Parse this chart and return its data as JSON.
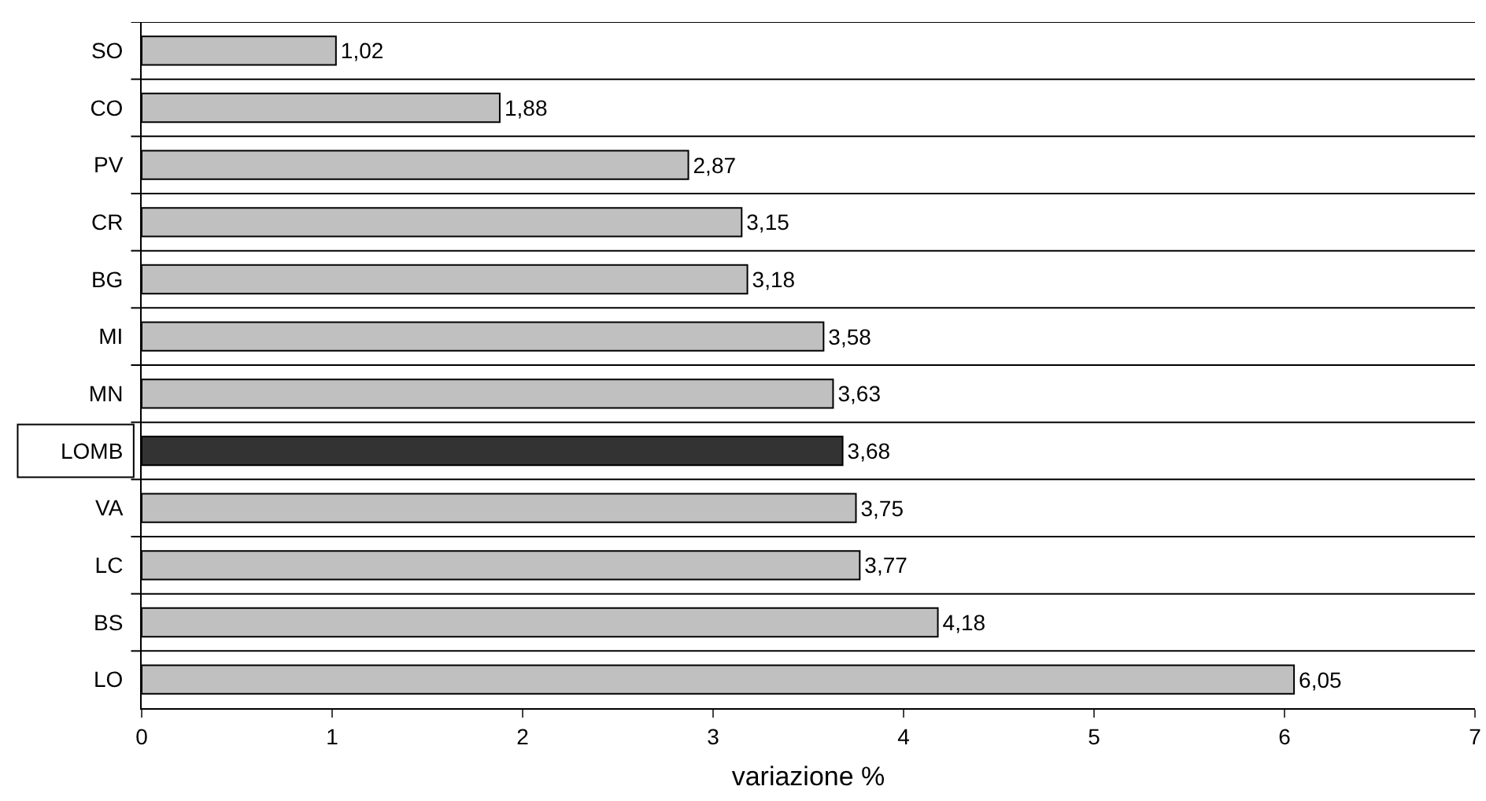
{
  "chart_data": {
    "type": "bar",
    "orientation": "horizontal",
    "xlabel": "variazione %",
    "categories": [
      "SO",
      "CO",
      "PV",
      "CR",
      "BG",
      "MI",
      "MN",
      "LOMB",
      "VA",
      "LC",
      "BS",
      "LO"
    ],
    "values": [
      1.02,
      1.88,
      2.87,
      3.15,
      3.18,
      3.58,
      3.63,
      3.68,
      3.75,
      3.77,
      4.18,
      6.05
    ],
    "colors": [
      "#c0c0c0",
      "#c0c0c0",
      "#c0c0c0",
      "#c0c0c0",
      "#c0c0c0",
      "#c0c0c0",
      "#c0c0c0",
      "#333333",
      "#c0c0c0",
      "#c0c0c0",
      "#c0c0c0",
      "#c0c0c0"
    ],
    "value_labels": [
      "1,02",
      "1,88",
      "2,87",
      "3,15",
      "3,18",
      "3,58",
      "3,63",
      "3,68",
      "3,75",
      "3,77",
      "4,18",
      "6,05"
    ],
    "xlim": [
      0,
      7
    ],
    "xticks": [
      0,
      1,
      2,
      3,
      4,
      5,
      6,
      7
    ],
    "grid": "y",
    "legend": false
  }
}
